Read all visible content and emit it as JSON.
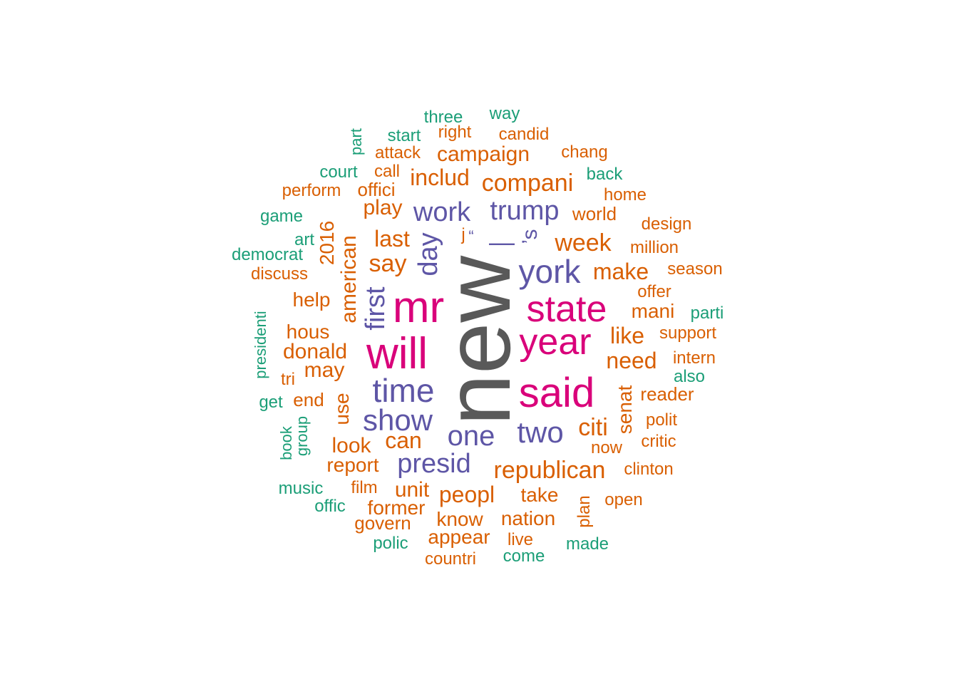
{
  "palette": {
    "top": "#595959",
    "tier1": "#D9017A",
    "tier2": "#5E56A6",
    "tier3": "#D95F02",
    "tier4": "#1B9E77"
  },
  "words": [
    {
      "text": "new",
      "tier": "top"
    },
    {
      "text": "mr",
      "tier": "tier1"
    },
    {
      "text": "will",
      "tier": "tier1"
    },
    {
      "text": "said",
      "tier": "tier1"
    },
    {
      "text": "state",
      "tier": "tier1"
    },
    {
      "text": "year",
      "tier": "tier1"
    },
    {
      "text": "york",
      "tier": "tier2"
    },
    {
      "text": "time",
      "tier": "tier2"
    },
    {
      "text": "show",
      "tier": "tier2"
    },
    {
      "text": "one",
      "tier": "tier2"
    },
    {
      "text": "two",
      "tier": "tier2"
    },
    {
      "text": "presid",
      "tier": "tier2"
    },
    {
      "text": "trump",
      "tier": "tier2"
    },
    {
      "text": "work",
      "tier": "tier2"
    },
    {
      "text": "day",
      "tier": "tier2"
    },
    {
      "text": "first",
      "tier": "tier2"
    },
    {
      "text": "—",
      "tier": "tier2"
    },
    {
      "text": "’s",
      "tier": "tier2"
    },
    {
      "text": "“",
      "tier": "tier2"
    },
    {
      "text": "compani",
      "tier": "tier3"
    },
    {
      "text": "campaign",
      "tier": "tier3"
    },
    {
      "text": "includ",
      "tier": "tier3"
    },
    {
      "text": "week",
      "tier": "tier3"
    },
    {
      "text": "make",
      "tier": "tier3"
    },
    {
      "text": "last",
      "tier": "tier3"
    },
    {
      "text": "say",
      "tier": "tier3"
    },
    {
      "text": "play",
      "tier": "tier3"
    },
    {
      "text": "american",
      "tier": "tier3"
    },
    {
      "text": "2016",
      "tier": "tier3"
    },
    {
      "text": "mani",
      "tier": "tier3"
    },
    {
      "text": "like",
      "tier": "tier3"
    },
    {
      "text": "need",
      "tier": "tier3"
    },
    {
      "text": "citi",
      "tier": "tier3"
    },
    {
      "text": "senat",
      "tier": "tier3"
    },
    {
      "text": "republican",
      "tier": "tier3"
    },
    {
      "text": "can",
      "tier": "tier3"
    },
    {
      "text": "look",
      "tier": "tier3"
    },
    {
      "text": "use",
      "tier": "tier3"
    },
    {
      "text": "may",
      "tier": "tier3"
    },
    {
      "text": "donald",
      "tier": "tier3"
    },
    {
      "text": "hous",
      "tier": "tier3"
    },
    {
      "text": "help",
      "tier": "tier3"
    },
    {
      "text": "end",
      "tier": "tier3"
    },
    {
      "text": "report",
      "tier": "tier3"
    },
    {
      "text": "peopl",
      "tier": "tier3"
    },
    {
      "text": "unit",
      "tier": "tier3"
    },
    {
      "text": "take",
      "tier": "tier3"
    },
    {
      "text": "nation",
      "tier": "tier3"
    },
    {
      "text": "know",
      "tier": "tier3"
    },
    {
      "text": "former",
      "tier": "tier3"
    },
    {
      "text": "appear",
      "tier": "tier3"
    },
    {
      "text": "govern",
      "tier": "tier3"
    },
    {
      "text": "film",
      "tier": "tier3"
    },
    {
      "text": "live",
      "tier": "tier3"
    },
    {
      "text": "countri",
      "tier": "tier3"
    },
    {
      "text": "plan",
      "tier": "tier3"
    },
    {
      "text": "open",
      "tier": "tier3"
    },
    {
      "text": "clinton",
      "tier": "tier3"
    },
    {
      "text": "now",
      "tier": "tier3"
    },
    {
      "text": "critic",
      "tier": "tier3"
    },
    {
      "text": "polit",
      "tier": "tier3"
    },
    {
      "text": "reader",
      "tier": "tier3"
    },
    {
      "text": "intern",
      "tier": "tier3"
    },
    {
      "text": "support",
      "tier": "tier3"
    },
    {
      "text": "offer",
      "tier": "tier3"
    },
    {
      "text": "season",
      "tier": "tier3"
    },
    {
      "text": "million",
      "tier": "tier3"
    },
    {
      "text": "design",
      "tier": "tier3"
    },
    {
      "text": "world",
      "tier": "tier3"
    },
    {
      "text": "home",
      "tier": "tier3"
    },
    {
      "text": "chang",
      "tier": "tier3"
    },
    {
      "text": "candid",
      "tier": "tier3"
    },
    {
      "text": "right",
      "tier": "tier3"
    },
    {
      "text": "attack",
      "tier": "tier3"
    },
    {
      "text": "call",
      "tier": "tier3"
    },
    {
      "text": "offici",
      "tier": "tier3"
    },
    {
      "text": "perform",
      "tier": "tier3"
    },
    {
      "text": "discuss",
      "tier": "tier3"
    },
    {
      "text": "tri",
      "tier": "tier3"
    },
    {
      "text": "j",
      "tier": "tier3"
    },
    {
      "text": "three",
      "tier": "tier4"
    },
    {
      "text": "way",
      "tier": "tier4"
    },
    {
      "text": "start",
      "tier": "tier4"
    },
    {
      "text": "part",
      "tier": "tier4"
    },
    {
      "text": "court",
      "tier": "tier4"
    },
    {
      "text": "back",
      "tier": "tier4"
    },
    {
      "text": "game",
      "tier": "tier4"
    },
    {
      "text": "art",
      "tier": "tier4"
    },
    {
      "text": "democrat",
      "tier": "tier4"
    },
    {
      "text": "presidenti",
      "tier": "tier4"
    },
    {
      "text": "get",
      "tier": "tier4"
    },
    {
      "text": "book",
      "tier": "tier4"
    },
    {
      "text": "group",
      "tier": "tier4"
    },
    {
      "text": "music",
      "tier": "tier4"
    },
    {
      "text": "offic",
      "tier": "tier4"
    },
    {
      "text": "polic",
      "tier": "tier4"
    },
    {
      "text": "come",
      "tier": "tier4"
    },
    {
      "text": "made",
      "tier": "tier4"
    },
    {
      "text": "parti",
      "tier": "tier4"
    },
    {
      "text": "also",
      "tier": "tier4"
    }
  ]
}
